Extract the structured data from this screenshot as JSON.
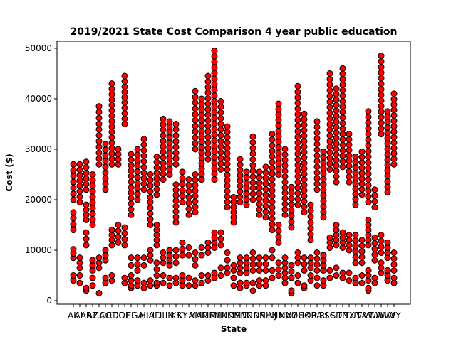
{
  "chart_data": {
    "type": "scatter",
    "title": "2019/2021 State Cost Comparison 4 year public education",
    "xlabel": "State",
    "ylabel": "Cost ($)",
    "ylim": [
      -700,
      51400
    ],
    "yticks": [
      0,
      10000,
      20000,
      30000,
      40000,
      50000
    ],
    "grid": false,
    "legend": "none",
    "marker_color": "#ff0000",
    "marker_edge": "#000000",
    "categories": [
      "AK",
      "AL",
      "AR",
      "AZ",
      "CA",
      "CO",
      "CT",
      "DC",
      "DE",
      "FL",
      "GA",
      "HI",
      "IA",
      "ID",
      "IL",
      "IN",
      "KS",
      "KY",
      "LA",
      "MA",
      "MD",
      "ME",
      "MI",
      "MN",
      "MO",
      "MS",
      "MT",
      "NC",
      "ND",
      "NE",
      "NH",
      "NJ",
      "NM",
      "NV",
      "NY",
      "OH",
      "OK",
      "OR",
      "PA",
      "RI",
      "SC",
      "SD",
      "TN",
      "TX",
      "UT",
      "VA",
      "VT",
      "WA",
      "WI",
      "WV",
      "WY"
    ],
    "ranges": [
      [
        [
          4000,
          5000
        ],
        [
          8500,
          10200
        ],
        [
          14000,
          17500
        ],
        [
          20000,
          27000
        ]
      ],
      [
        [
          3500,
          5000
        ],
        [
          6500,
          8500
        ],
        [
          19500,
          27000
        ]
      ],
      [
        [
          2000,
          2500
        ],
        [
          11000,
          13500
        ],
        [
          16000,
          19000
        ],
        [
          22000,
          27500
        ]
      ],
      [
        [
          3000,
          4500
        ],
        [
          6000,
          8000
        ],
        [
          15000,
          25000
        ]
      ],
      [
        [
          1500,
          1500
        ],
        [
          6500,
          8500
        ],
        [
          27000,
          38500
        ]
      ],
      [
        [
          3500,
          4500
        ],
        [
          8000,
          10000
        ],
        [
          22000,
          31000
        ]
      ],
      [
        [
          4000,
          5000
        ],
        [
          11000,
          14000
        ],
        [
          27000,
          43000
        ]
      ],
      [
        [
          11500,
          15000
        ],
        [
          27000,
          30000
        ]
      ],
      [
        [
          3500,
          4500
        ],
        [
          11000,
          14500
        ],
        [
          35000,
          44500
        ]
      ],
      [
        [
          2500,
          3000
        ],
        [
          4000,
          5000
        ],
        [
          7000,
          8500
        ],
        [
          17000,
          29000
        ]
      ],
      [
        [
          3000,
          4000
        ],
        [
          6000,
          8500
        ],
        [
          20000,
          30000
        ]
      ],
      [
        [
          2500,
          3500
        ],
        [
          7000,
          8500
        ],
        [
          22000,
          32000
        ]
      ],
      [
        [
          3000,
          4000
        ],
        [
          8000,
          10000
        ],
        [
          15000,
          19500
        ],
        [
          20500,
          25000
        ]
      ],
      [
        [
          3000,
          3500
        ],
        [
          5000,
          7500
        ],
        [
          11000,
          15000
        ],
        [
          21000,
          28500
        ]
      ],
      [
        [
          3500,
          5000
        ],
        [
          7500,
          9500
        ],
        [
          24000,
          36000
        ]
      ],
      [
        [
          3000,
          4500
        ],
        [
          7000,
          10000
        ],
        [
          25000,
          35500
        ]
      ],
      [
        [
          3500,
          4500
        ],
        [
          7500,
          10000
        ],
        [
          15500,
          23000
        ],
        [
          27000,
          35000
        ]
      ],
      [
        [
          3000,
          5000
        ],
        [
          9000,
          11500
        ],
        [
          19500,
          25500
        ]
      ],
      [
        [
          3000,
          4500
        ],
        [
          9000,
          10500
        ],
        [
          17000,
          24000
        ]
      ],
      [
        [
          3000,
          4000
        ],
        [
          7000,
          9500
        ],
        [
          17500,
          25000
        ],
        [
          30000,
          41500
        ]
      ],
      [
        [
          3500,
          5000
        ],
        [
          9000,
          10500
        ],
        [
          24000,
          40000
        ]
      ],
      [
        [
          4000,
          5000
        ],
        [
          9500,
          11500
        ],
        [
          28000,
          44500
        ]
      ],
      [
        [
          4500,
          5500
        ],
        [
          10500,
          13500
        ],
        [
          24000,
          49500
        ]
      ],
      [
        [
          5000,
          6500
        ],
        [
          11000,
          13500
        ],
        [
          26000,
          39500
        ]
      ],
      [
        [
          5500,
          6500
        ],
        [
          8000,
          9500
        ],
        [
          18500,
          34500
        ]
      ],
      [
        [
          3000,
          4500
        ],
        [
          6000,
          7000
        ],
        [
          15500,
          20500
        ]
      ],
      [
        [
          2500,
          3500
        ],
        [
          5500,
          8500
        ],
        [
          19500,
          28000
        ]
      ],
      [
        [
          3000,
          3500
        ],
        [
          5500,
          8500
        ],
        [
          19000,
          25500
        ]
      ],
      [
        [
          2000,
          3500
        ],
        [
          6000,
          9500
        ],
        [
          20000,
          32500
        ]
      ],
      [
        [
          3000,
          4000
        ],
        [
          6000,
          8500
        ],
        [
          17000,
          25500
        ]
      ],
      [
        [
          3000,
          4000
        ],
        [
          6000,
          8500
        ],
        [
          16500,
          26500
        ]
      ],
      [
        [
          4500,
          6000
        ],
        [
          8500,
          10000
        ],
        [
          14000,
          33000
        ]
      ],
      [
        [
          5000,
          7500
        ],
        [
          11500,
          15000
        ],
        [
          25000,
          39000
        ]
      ],
      [
        [
          3500,
          5500
        ],
        [
          6500,
          8500
        ],
        [
          17000,
          30000
        ]
      ],
      [
        [
          1500,
          2000
        ],
        [
          4500,
          7000
        ],
        [
          14500,
          22500
        ]
      ],
      [
        [
          3500,
          5000
        ],
        [
          7500,
          9500
        ],
        [
          19000,
          42500
        ]
      ],
      [
        [
          2500,
          3000
        ],
        [
          6000,
          8500
        ],
        [
          17500,
          37000
        ]
      ],
      [
        [
          4000,
          5000
        ],
        [
          6500,
          8500
        ],
        [
          12000,
          19000
        ]
      ],
      [
        [
          3000,
          4500
        ],
        [
          6000,
          9500
        ],
        [
          22000,
          35500
        ]
      ],
      [
        [
          3000,
          4000
        ],
        [
          6000,
          9000
        ],
        [
          16500,
          29500
        ]
      ],
      [
        [
          4500,
          6000
        ],
        [
          10500,
          12500
        ],
        [
          26000,
          45000
        ]
      ],
      [
        [
          5000,
          6500
        ],
        [
          11000,
          15000
        ],
        [
          23500,
          42000
        ]
      ],
      [
        [
          4500,
          5500
        ],
        [
          10500,
          13500
        ],
        [
          26500,
          46000
        ]
      ],
      [
        [
          4000,
          5500
        ],
        [
          10000,
          13000
        ],
        [
          23500,
          33000
        ]
      ],
      [
        [
          3500,
          4500
        ],
        [
          7500,
          13000
        ],
        [
          19000,
          28500
        ]
      ],
      [
        [
          3500,
          5000
        ],
        [
          7500,
          12000
        ],
        [
          21000,
          29500
        ]
      ],
      [
        [
          2000,
          2500
        ],
        [
          4000,
          6000
        ],
        [
          11000,
          16000
        ],
        [
          19500,
          37500
        ]
      ],
      [
        [
          3500,
          4500
        ],
        [
          8000,
          12500
        ],
        [
          18500,
          22000
        ]
      ],
      [
        [
          5500,
          7500
        ],
        [
          9500,
          13000
        ],
        [
          33000,
          48500
        ]
      ],
      [
        [
          4000,
          6000
        ],
        [
          8500,
          11500
        ],
        [
          21500,
          37500
        ]
      ],
      [
        [
          3500,
          4500
        ],
        [
          6000,
          9500
        ],
        [
          27000,
          41000
        ]
      ]
    ]
  }
}
